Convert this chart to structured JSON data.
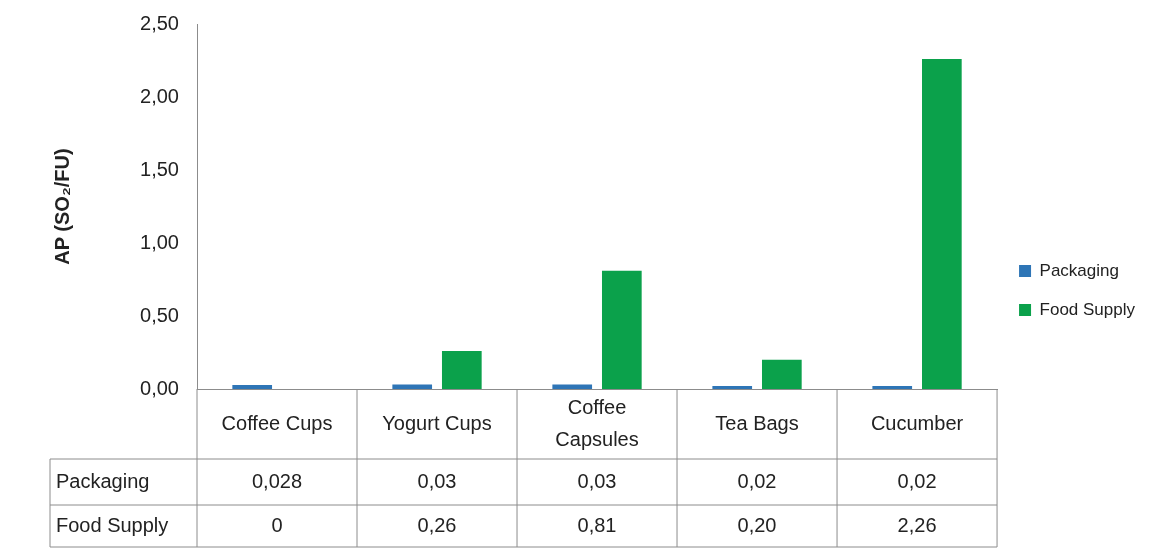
{
  "chart_data": {
    "type": "bar",
    "ylabel": "AP (SO₂/FU)",
    "categories": [
      "Coffee Cups",
      "Yogurt Cups",
      "Coffee Capsules",
      "Tea Bags",
      "Cucumber"
    ],
    "series": [
      {
        "name": "Packaging",
        "color": "#2e75b6",
        "values": [
          0.028,
          0.03,
          0.03,
          0.02,
          0.02
        ],
        "value_labels": [
          "0,028",
          "0,03",
          "0,03",
          "0,02",
          "0,02"
        ]
      },
      {
        "name": "Food Supply",
        "color": "#0ba14b",
        "values": [
          0,
          0.26,
          0.81,
          0.2,
          2.26
        ],
        "value_labels": [
          "0",
          "0,26",
          "0,81",
          "0,20",
          "2,26"
        ]
      }
    ],
    "ylim": [
      0,
      2.5
    ],
    "yticks": [
      {
        "value": 0,
        "label": "0,00"
      },
      {
        "value": 0.5,
        "label": "0,50"
      },
      {
        "value": 1,
        "label": "1,00"
      },
      {
        "value": 1.5,
        "label": "1,50"
      },
      {
        "value": 2,
        "label": "2,00"
      },
      {
        "value": 2.5,
        "label": "2,50"
      }
    ],
    "grid": false,
    "legend": "right"
  }
}
